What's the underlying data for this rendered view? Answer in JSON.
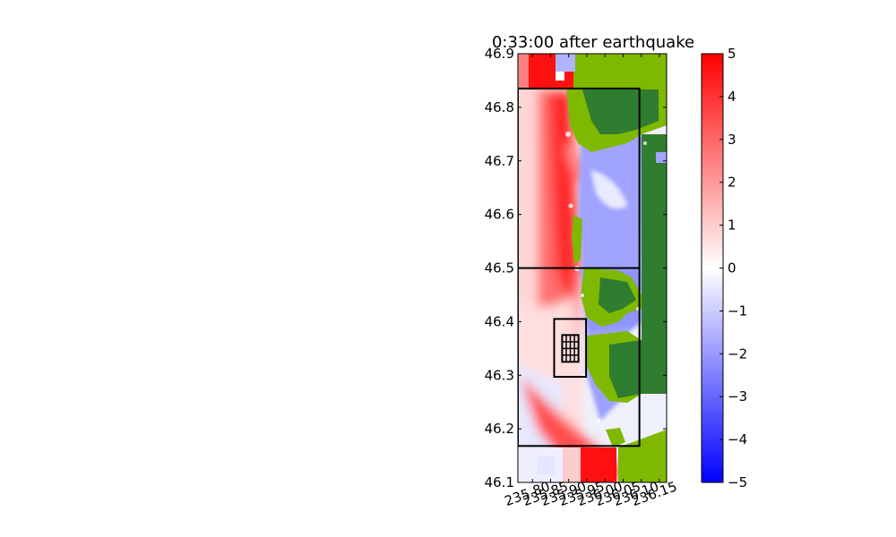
{
  "chart_data": {
    "type": "heatmap",
    "title": "0:33:00 after earthquake",
    "xlabel": "",
    "ylabel": "",
    "xlim": [
      235.76,
      236.17
    ],
    "ylim": [
      46.1,
      46.9
    ],
    "x_ticks": [
      "235.80",
      "235.85",
      "235.90",
      "235.95",
      "236.00",
      "236.05",
      "236.10",
      "236.15"
    ],
    "y_ticks": [
      "46.1",
      "46.2",
      "46.3",
      "46.4",
      "46.5",
      "46.6",
      "46.7",
      "46.8",
      "46.9"
    ],
    "colorbar": {
      "vmin": -5,
      "vmax": 5,
      "ticks": [
        "5",
        "4",
        "3",
        "2",
        "1",
        "0",
        "−1",
        "−2",
        "−3",
        "−4",
        "−5"
      ],
      "colormap": [
        "#0000ff",
        "#ffffff",
        "#ff0000"
      ]
    },
    "land_colors": {
      "low": "#7fb800",
      "high": "#2f7d2f"
    },
    "grid": false,
    "regions": [
      {
        "name": "Level 1 box",
        "x0": 235.76,
        "x1": 236.095,
        "y0": 46.168,
        "y1": 46.835
      },
      {
        "name": "Level 2 divider",
        "x0": 235.76,
        "x1": 236.095,
        "y0": 46.5,
        "y1": 46.5
      },
      {
        "name": "Level 3 box",
        "x0": 235.86,
        "x1": 235.948,
        "y0": 46.297,
        "y1": 46.405
      },
      {
        "name": "Level 4 box",
        "x0": 235.882,
        "x1": 235.927,
        "y0": 46.325,
        "y1": 46.375
      }
    ]
  }
}
